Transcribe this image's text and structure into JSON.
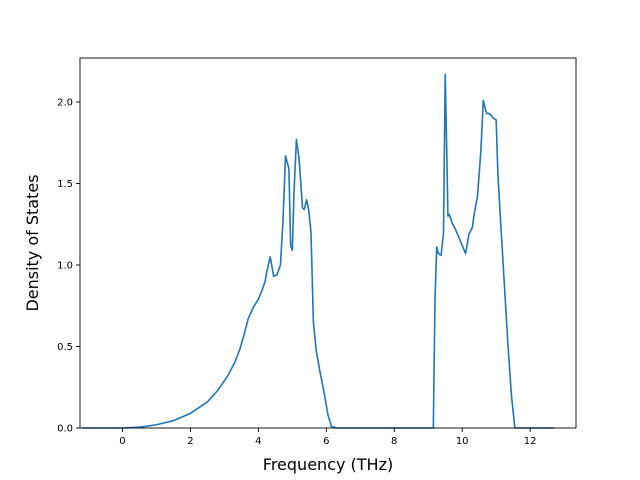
{
  "chart_data": {
    "type": "line",
    "title": "",
    "xlabel": "Frequency (THz)",
    "ylabel": "Density of States",
    "xlim": [
      -1.25,
      13.35
    ],
    "ylim": [
      0,
      2.27
    ],
    "xticks": [
      0,
      2,
      4,
      6,
      8,
      10,
      12
    ],
    "xtick_labels": [
      "0",
      "2",
      "4",
      "6",
      "8",
      "10",
      "12"
    ],
    "yticks": [
      0.0,
      0.5,
      1.0,
      1.5,
      2.0
    ],
    "ytick_labels": [
      "0.0",
      "0.5",
      "1.0",
      "1.5",
      "2.0"
    ],
    "grid": false,
    "legend": "none",
    "colors": {
      "line": "#1f77b4",
      "axes": "#000000",
      "background": "#ffffff"
    },
    "series": [
      {
        "x": [
          -1.2,
          0.0,
          0.5,
          1.0,
          1.5,
          2.0,
          2.5,
          2.8,
          3.1,
          3.3,
          3.45,
          3.55,
          3.7,
          3.85,
          4.0,
          4.1,
          4.2,
          4.25,
          4.35,
          4.45,
          4.55,
          4.65,
          4.72,
          4.8,
          4.9,
          4.95,
          5.0,
          5.05,
          5.12,
          5.2,
          5.3,
          5.35,
          5.42,
          5.48,
          5.55,
          5.62,
          5.7,
          5.8,
          5.95,
          6.05,
          6.15,
          6.3,
          7.0,
          8.0,
          9.15,
          9.2,
          9.25,
          9.3,
          9.38,
          9.45,
          9.5,
          9.55,
          9.58,
          9.62,
          9.7,
          9.8,
          9.9,
          10.0,
          10.1,
          10.2,
          10.3,
          10.35,
          10.45,
          10.55,
          10.62,
          10.68,
          10.72,
          10.78,
          10.85,
          10.92,
          11.0,
          11.05,
          11.15,
          11.25,
          11.35,
          11.45,
          11.55,
          11.6,
          12.0,
          12.7
        ],
        "y": [
          0.0,
          0.0,
          0.005,
          0.02,
          0.045,
          0.09,
          0.16,
          0.23,
          0.32,
          0.4,
          0.48,
          0.55,
          0.67,
          0.74,
          0.79,
          0.84,
          0.9,
          0.96,
          1.05,
          0.93,
          0.94,
          1.0,
          1.25,
          1.67,
          1.59,
          1.12,
          1.09,
          1.45,
          1.77,
          1.65,
          1.35,
          1.34,
          1.4,
          1.34,
          1.2,
          0.65,
          0.48,
          0.36,
          0.2,
          0.08,
          0.01,
          0.0,
          0.0,
          0.0,
          0.0,
          0.8,
          1.11,
          1.07,
          1.06,
          1.2,
          2.17,
          1.65,
          1.3,
          1.31,
          1.26,
          1.22,
          1.17,
          1.12,
          1.07,
          1.19,
          1.23,
          1.31,
          1.42,
          1.7,
          2.01,
          1.96,
          1.93,
          1.93,
          1.92,
          1.9,
          1.89,
          1.56,
          1.2,
          0.85,
          0.5,
          0.2,
          0.0,
          0.0,
          0.0,
          0.0
        ]
      }
    ]
  }
}
